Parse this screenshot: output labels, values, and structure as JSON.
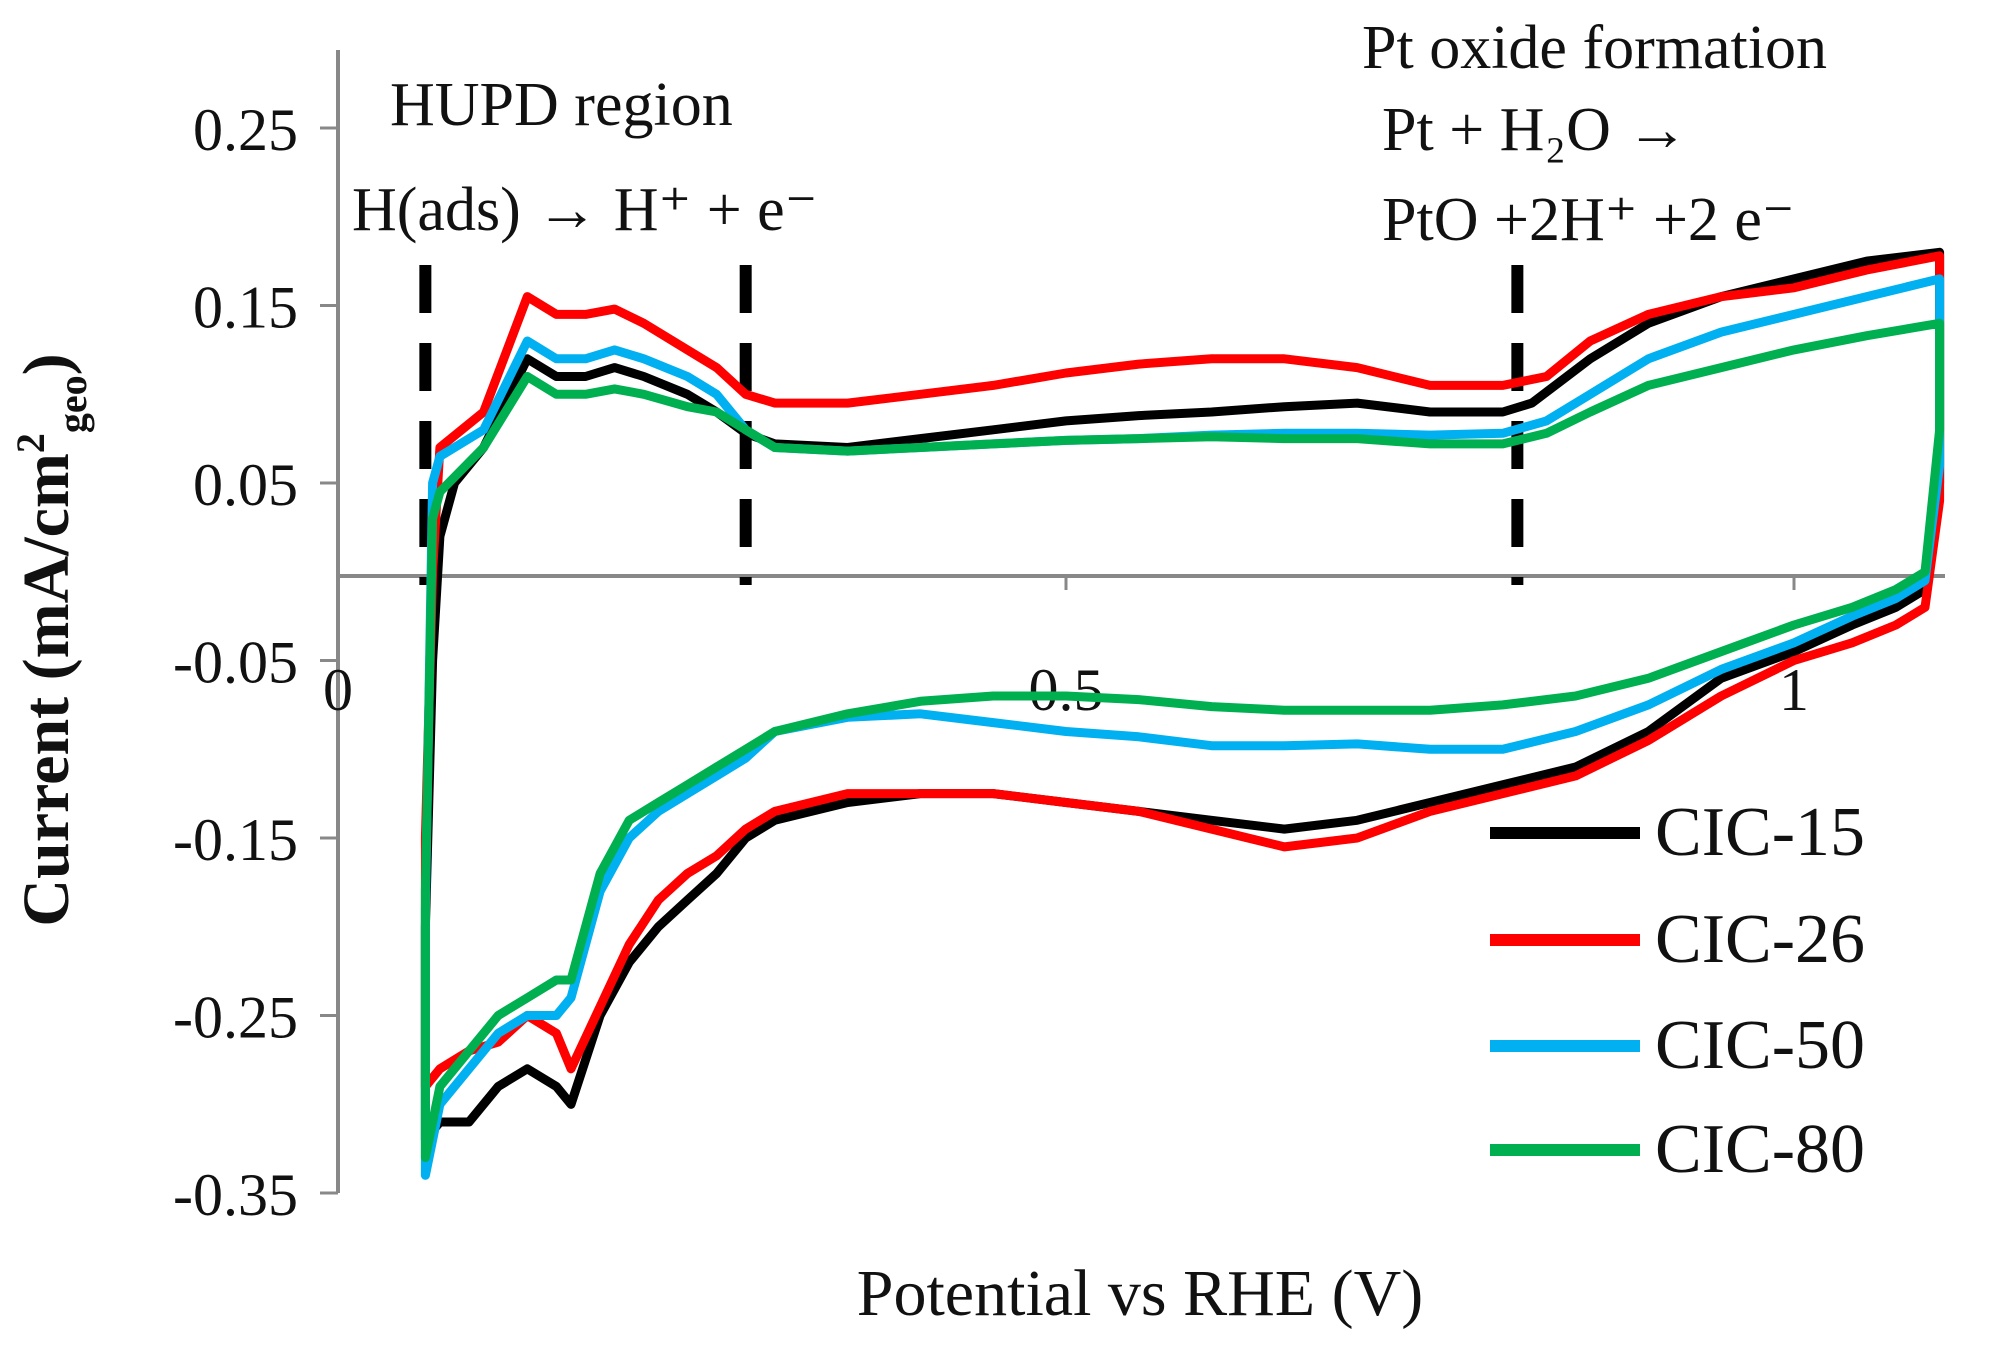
{
  "chart_data": {
    "type": "line",
    "title": "",
    "xlabel": "Potential vs RHE (V)",
    "ylabel": "Current (mA/cm2geo)",
    "ylabel_parts": {
      "main": "Current (mA/cm",
      "sup": "2",
      "sub": "geo",
      "close": ")"
    },
    "xlim": [
      0,
      1.1
    ],
    "ylim": [
      -0.35,
      0.25
    ],
    "x_ticks": [
      {
        "value": 0,
        "label": "0"
      },
      {
        "value": 0.5,
        "label": "0.5"
      },
      {
        "value": 1,
        "label": "1"
      }
    ],
    "y_ticks": [
      {
        "value": 0.25,
        "label": "0.25"
      },
      {
        "value": 0.15,
        "label": "0.15"
      },
      {
        "value": 0.05,
        "label": "0.05"
      },
      {
        "value": -0.05,
        "label": "-0.05"
      },
      {
        "value": -0.15,
        "label": "-0.15"
      },
      {
        "value": -0.25,
        "label": "-0.25"
      },
      {
        "value": -0.35,
        "label": "-0.35"
      }
    ],
    "grid": false,
    "legend_position": "bottom-right",
    "dashed_markers_x": [
      0.06,
      0.28,
      0.81
    ],
    "annotations": [
      {
        "lines": [
          "HUPD region",
          "H(ads) → H⁺ + e⁻"
        ]
      },
      {
        "lines": [
          "Pt oxide formation",
          "Pt + H₂O →",
          "PtO +2H⁺ +2 e⁻"
        ]
      }
    ],
    "series": [
      {
        "name": "CIC-15",
        "color": "#000000",
        "points": [
          [
            0.06,
            -0.32
          ],
          [
            0.06,
            -0.2
          ],
          [
            0.065,
            -0.05
          ],
          [
            0.07,
            0.02
          ],
          [
            0.08,
            0.05
          ],
          [
            0.1,
            0.07
          ],
          [
            0.13,
            0.12
          ],
          [
            0.15,
            0.11
          ],
          [
            0.17,
            0.11
          ],
          [
            0.19,
            0.115
          ],
          [
            0.21,
            0.11
          ],
          [
            0.24,
            0.1
          ],
          [
            0.26,
            0.09
          ],
          [
            0.28,
            0.078
          ],
          [
            0.3,
            0.072
          ],
          [
            0.35,
            0.07
          ],
          [
            0.4,
            0.075
          ],
          [
            0.45,
            0.08
          ],
          [
            0.5,
            0.085
          ],
          [
            0.55,
            0.088
          ],
          [
            0.6,
            0.09
          ],
          [
            0.65,
            0.093
          ],
          [
            0.7,
            0.095
          ],
          [
            0.75,
            0.09
          ],
          [
            0.8,
            0.09
          ],
          [
            0.82,
            0.095
          ],
          [
            0.86,
            0.12
          ],
          [
            0.9,
            0.14
          ],
          [
            0.95,
            0.155
          ],
          [
            1.0,
            0.165
          ],
          [
            1.05,
            0.175
          ],
          [
            1.1,
            0.18
          ],
          [
            1.1,
            0.05
          ],
          [
            1.09,
            -0.01
          ],
          [
            1.07,
            -0.02
          ],
          [
            1.04,
            -0.03
          ],
          [
            1.0,
            -0.045
          ],
          [
            0.95,
            -0.06
          ],
          [
            0.9,
            -0.09
          ],
          [
            0.85,
            -0.11
          ],
          [
            0.8,
            -0.12
          ],
          [
            0.75,
            -0.13
          ],
          [
            0.7,
            -0.14
          ],
          [
            0.65,
            -0.145
          ],
          [
            0.6,
            -0.14
          ],
          [
            0.55,
            -0.135
          ],
          [
            0.5,
            -0.13
          ],
          [
            0.45,
            -0.125
          ],
          [
            0.4,
            -0.125
          ],
          [
            0.35,
            -0.13
          ],
          [
            0.3,
            -0.14
          ],
          [
            0.28,
            -0.15
          ],
          [
            0.26,
            -0.17
          ],
          [
            0.24,
            -0.185
          ],
          [
            0.22,
            -0.2
          ],
          [
            0.2,
            -0.22
          ],
          [
            0.18,
            -0.25
          ],
          [
            0.16,
            -0.3
          ],
          [
            0.15,
            -0.29
          ],
          [
            0.13,
            -0.28
          ],
          [
            0.11,
            -0.29
          ],
          [
            0.09,
            -0.31
          ],
          [
            0.07,
            -0.31
          ],
          [
            0.06,
            -0.32
          ]
        ]
      },
      {
        "name": "CIC-26",
        "color": "#ff0000",
        "points": [
          [
            0.06,
            -0.29
          ],
          [
            0.06,
            -0.15
          ],
          [
            0.065,
            0.0
          ],
          [
            0.07,
            0.07
          ],
          [
            0.1,
            0.09
          ],
          [
            0.13,
            0.155
          ],
          [
            0.15,
            0.145
          ],
          [
            0.17,
            0.145
          ],
          [
            0.19,
            0.148
          ],
          [
            0.21,
            0.14
          ],
          [
            0.24,
            0.125
          ],
          [
            0.26,
            0.115
          ],
          [
            0.28,
            0.1
          ],
          [
            0.3,
            0.095
          ],
          [
            0.35,
            0.095
          ],
          [
            0.4,
            0.1
          ],
          [
            0.45,
            0.105
          ],
          [
            0.5,
            0.112
          ],
          [
            0.55,
            0.117
          ],
          [
            0.6,
            0.12
          ],
          [
            0.65,
            0.12
          ],
          [
            0.7,
            0.115
          ],
          [
            0.75,
            0.105
          ],
          [
            0.8,
            0.105
          ],
          [
            0.83,
            0.11
          ],
          [
            0.86,
            0.13
          ],
          [
            0.9,
            0.145
          ],
          [
            0.95,
            0.155
          ],
          [
            1.0,
            0.16
          ],
          [
            1.05,
            0.17
          ],
          [
            1.1,
            0.178
          ],
          [
            1.1,
            0.04
          ],
          [
            1.09,
            -0.02
          ],
          [
            1.07,
            -0.03
          ],
          [
            1.04,
            -0.04
          ],
          [
            1.0,
            -0.05
          ],
          [
            0.95,
            -0.07
          ],
          [
            0.9,
            -0.095
          ],
          [
            0.85,
            -0.115
          ],
          [
            0.8,
            -0.125
          ],
          [
            0.75,
            -0.135
          ],
          [
            0.7,
            -0.15
          ],
          [
            0.65,
            -0.155
          ],
          [
            0.6,
            -0.145
          ],
          [
            0.55,
            -0.135
          ],
          [
            0.5,
            -0.13
          ],
          [
            0.45,
            -0.125
          ],
          [
            0.4,
            -0.125
          ],
          [
            0.35,
            -0.125
          ],
          [
            0.3,
            -0.135
          ],
          [
            0.28,
            -0.145
          ],
          [
            0.26,
            -0.16
          ],
          [
            0.24,
            -0.17
          ],
          [
            0.22,
            -0.185
          ],
          [
            0.2,
            -0.21
          ],
          [
            0.18,
            -0.245
          ],
          [
            0.16,
            -0.28
          ],
          [
            0.15,
            -0.26
          ],
          [
            0.13,
            -0.25
          ],
          [
            0.11,
            -0.265
          ],
          [
            0.09,
            -0.27
          ],
          [
            0.07,
            -0.28
          ],
          [
            0.06,
            -0.29
          ]
        ]
      },
      {
        "name": "CIC-50",
        "color": "#00b0f0",
        "points": [
          [
            0.06,
            -0.34
          ],
          [
            0.06,
            -0.19
          ],
          [
            0.065,
            0.05
          ],
          [
            0.07,
            0.065
          ],
          [
            0.1,
            0.08
          ],
          [
            0.13,
            0.13
          ],
          [
            0.15,
            0.12
          ],
          [
            0.17,
            0.12
          ],
          [
            0.19,
            0.125
          ],
          [
            0.21,
            0.12
          ],
          [
            0.24,
            0.11
          ],
          [
            0.26,
            0.1
          ],
          [
            0.28,
            0.08
          ],
          [
            0.3,
            0.07
          ],
          [
            0.35,
            0.068
          ],
          [
            0.4,
            0.07
          ],
          [
            0.45,
            0.072
          ],
          [
            0.5,
            0.074
          ],
          [
            0.55,
            0.075
          ],
          [
            0.6,
            0.077
          ],
          [
            0.65,
            0.078
          ],
          [
            0.7,
            0.078
          ],
          [
            0.75,
            0.077
          ],
          [
            0.8,
            0.078
          ],
          [
            0.83,
            0.085
          ],
          [
            0.86,
            0.1
          ],
          [
            0.9,
            0.12
          ],
          [
            0.95,
            0.135
          ],
          [
            1.0,
            0.145
          ],
          [
            1.05,
            0.155
          ],
          [
            1.1,
            0.165
          ],
          [
            1.1,
            0.06
          ],
          [
            1.09,
            -0.005
          ],
          [
            1.07,
            -0.015
          ],
          [
            1.04,
            -0.025
          ],
          [
            1.0,
            -0.04
          ],
          [
            0.95,
            -0.055
          ],
          [
            0.9,
            -0.075
          ],
          [
            0.85,
            -0.09
          ],
          [
            0.8,
            -0.1
          ],
          [
            0.75,
            -0.1
          ],
          [
            0.7,
            -0.097
          ],
          [
            0.65,
            -0.098
          ],
          [
            0.6,
            -0.098
          ],
          [
            0.55,
            -0.093
          ],
          [
            0.5,
            -0.09
          ],
          [
            0.45,
            -0.085
          ],
          [
            0.4,
            -0.08
          ],
          [
            0.35,
            -0.082
          ],
          [
            0.3,
            -0.09
          ],
          [
            0.28,
            -0.105
          ],
          [
            0.26,
            -0.115
          ],
          [
            0.24,
            -0.125
          ],
          [
            0.22,
            -0.135
          ],
          [
            0.2,
            -0.15
          ],
          [
            0.18,
            -0.18
          ],
          [
            0.16,
            -0.24
          ],
          [
            0.15,
            -0.25
          ],
          [
            0.13,
            -0.25
          ],
          [
            0.11,
            -0.26
          ],
          [
            0.09,
            -0.28
          ],
          [
            0.07,
            -0.3
          ],
          [
            0.06,
            -0.34
          ]
        ]
      },
      {
        "name": "CIC-80",
        "color": "#00b050",
        "points": [
          [
            0.06,
            -0.33
          ],
          [
            0.06,
            -0.18
          ],
          [
            0.065,
            0.03
          ],
          [
            0.07,
            0.045
          ],
          [
            0.1,
            0.07
          ],
          [
            0.13,
            0.11
          ],
          [
            0.15,
            0.1
          ],
          [
            0.17,
            0.1
          ],
          [
            0.19,
            0.103
          ],
          [
            0.21,
            0.1
          ],
          [
            0.24,
            0.093
          ],
          [
            0.26,
            0.09
          ],
          [
            0.28,
            0.08
          ],
          [
            0.3,
            0.07
          ],
          [
            0.35,
            0.068
          ],
          [
            0.4,
            0.07
          ],
          [
            0.45,
            0.072
          ],
          [
            0.5,
            0.074
          ],
          [
            0.55,
            0.075
          ],
          [
            0.6,
            0.076
          ],
          [
            0.65,
            0.075
          ],
          [
            0.7,
            0.075
          ],
          [
            0.75,
            0.072
          ],
          [
            0.8,
            0.072
          ],
          [
            0.83,
            0.078
          ],
          [
            0.86,
            0.09
          ],
          [
            0.9,
            0.105
          ],
          [
            0.95,
            0.115
          ],
          [
            1.0,
            0.125
          ],
          [
            1.05,
            0.133
          ],
          [
            1.1,
            0.14
          ],
          [
            1.1,
            0.08
          ],
          [
            1.09,
            0.0
          ],
          [
            1.07,
            -0.01
          ],
          [
            1.04,
            -0.02
          ],
          [
            1.0,
            -0.03
          ],
          [
            0.95,
            -0.045
          ],
          [
            0.9,
            -0.06
          ],
          [
            0.85,
            -0.07
          ],
          [
            0.8,
            -0.075
          ],
          [
            0.75,
            -0.078
          ],
          [
            0.7,
            -0.078
          ],
          [
            0.65,
            -0.078
          ],
          [
            0.6,
            -0.076
          ],
          [
            0.55,
            -0.072
          ],
          [
            0.5,
            -0.07
          ],
          [
            0.45,
            -0.07
          ],
          [
            0.4,
            -0.073
          ],
          [
            0.35,
            -0.08
          ],
          [
            0.3,
            -0.09
          ],
          [
            0.28,
            -0.1
          ],
          [
            0.26,
            -0.11
          ],
          [
            0.24,
            -0.12
          ],
          [
            0.22,
            -0.13
          ],
          [
            0.2,
            -0.14
          ],
          [
            0.18,
            -0.17
          ],
          [
            0.16,
            -0.23
          ],
          [
            0.15,
            -0.23
          ],
          [
            0.13,
            -0.24
          ],
          [
            0.11,
            -0.25
          ],
          [
            0.09,
            -0.27
          ],
          [
            0.07,
            -0.29
          ],
          [
            0.06,
            -0.33
          ]
        ]
      }
    ]
  }
}
